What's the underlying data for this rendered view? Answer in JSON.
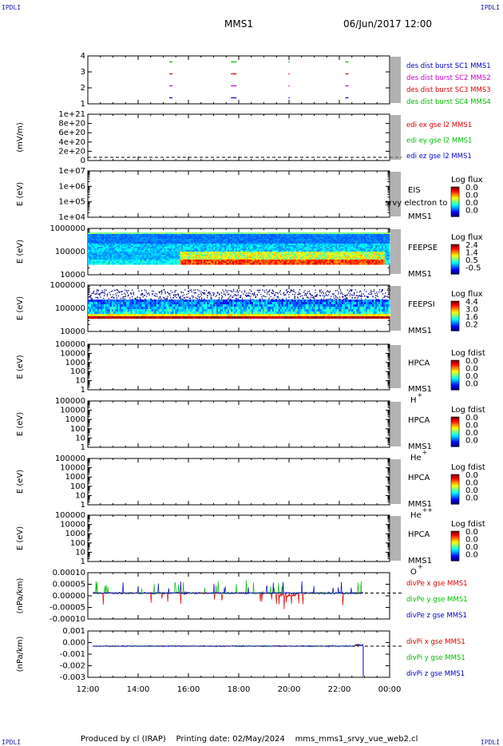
{
  "corner_mark": "IPDLI",
  "header": {
    "title": "MMS1",
    "date": "06/Jun/2017 12:00"
  },
  "footer": {
    "produced_by": "Produced by cl (IRAP)",
    "printing_date": "Printing date: 02/May/2024",
    "filename": "mms_mms1_srvy_vue_web2.cl"
  },
  "time_axis": {
    "labels": [
      "12:00",
      "14:00",
      "16:00",
      "18:00",
      "20:00",
      "22:00",
      "00:00"
    ],
    "hours": [
      12,
      14,
      16,
      18,
      20,
      22,
      24
    ],
    "data_end_hour": 22.95
  },
  "chart_data": [
    {
      "type": "scatter",
      "panel": "des_dist_burst",
      "ylim": [
        0.5,
        4.5
      ],
      "yticks": [
        "1",
        "2",
        "3",
        "4"
      ],
      "grid": false,
      "series": [
        {
          "name": "des dist burst SC1 MMS1",
          "color": "#0000cc",
          "y": 1,
          "x_hours": [
            15.3,
            17.8,
            20.0,
            22.3
          ]
        },
        {
          "name": "des dist burst SC2 MMS2",
          "color": "#cc00cc",
          "y": 2,
          "x_hours": [
            15.3,
            17.8,
            20.0,
            22.3
          ]
        },
        {
          "name": "des dist burst SC3 MMS3",
          "color": "#dd0000",
          "y": 3,
          "x_hours": [
            15.3,
            17.8,
            20.0,
            22.3
          ]
        },
        {
          "name": "des dist burst SC4 MMS4",
          "color": "#00bb00",
          "y": 4,
          "x_hours": [
            15.3,
            17.8,
            20.0,
            22.3
          ]
        }
      ]
    },
    {
      "type": "line",
      "panel": "edi_e_gse",
      "ylabel": "(mV/m)",
      "yticks": [
        "0",
        "2e+20",
        "4e+20",
        "6e+20",
        "8e+20",
        "1e+21"
      ],
      "ylim": [
        0,
        1e+21
      ],
      "series": [
        {
          "name": "edi ex gse l2 MMS1",
          "color": "#dd0000"
        },
        {
          "name": "edi ey gse l2 MMS1",
          "color": "#00bb00"
        },
        {
          "name": "edi ez gse l2 MMS1",
          "color": "#0000cc"
        }
      ],
      "zero_line": true
    },
    {
      "type": "heatmap",
      "panel": "eis",
      "ylabel": "E (eV)",
      "yticks": [
        "1e+04",
        "1e+05",
        "1e+06",
        "1e+07"
      ],
      "instrument": "EIS",
      "spacecraft": "MMS1",
      "overlay_text": "srvy electron to",
      "colorbar_title": "Log flux",
      "colorbar_ticks": [
        "0.0",
        "0.0",
        "0.0",
        "0.0"
      ],
      "empty": true
    },
    {
      "type": "heatmap",
      "panel": "feeps_electron",
      "ylabel": "E (eV)",
      "yticks": [
        "10000",
        "100000",
        "1000000"
      ],
      "instrument": "FEEPSE",
      "spacecraft": "MMS1",
      "colorbar_title": "Log flux",
      "colorbar_ticks": [
        "2.4",
        "1.4",
        "0.5",
        "-0.5"
      ],
      "empty": false
    },
    {
      "type": "heatmap",
      "panel": "feeps_ion",
      "ylabel": "E (eV)",
      "yticks": [
        "10000",
        "100000",
        "1000000"
      ],
      "instrument": "FEEPSI",
      "spacecraft": "MMS1",
      "colorbar_title": "Log flux",
      "colorbar_ticks": [
        "4.4",
        "3.0",
        "1.6",
        "0.2"
      ],
      "empty": false
    },
    {
      "type": "heatmap",
      "panel": "hpca_h",
      "ylabel": "E (eV)",
      "yticks": [
        "1",
        "10",
        "100",
        "1000",
        "10000",
        "100000"
      ],
      "instrument": "HPCA",
      "spacecraft": "MMS1",
      "species": "H",
      "charge": "+",
      "colorbar_title": "Log fdist",
      "colorbar_ticks": [
        "0.0",
        "0.0",
        "0.0",
        "0.0"
      ],
      "empty": true
    },
    {
      "type": "heatmap",
      "panel": "hpca_he",
      "ylabel": "E (eV)",
      "yticks": [
        "1",
        "10",
        "100",
        "1000",
        "10000",
        "100000"
      ],
      "instrument": "HPCA",
      "spacecraft": "MMS1",
      "species": "He",
      "charge": "+",
      "colorbar_title": "Log fdist",
      "colorbar_ticks": [
        "0.0",
        "0.0",
        "0.0",
        "0.0"
      ],
      "empty": true
    },
    {
      "type": "heatmap",
      "panel": "hpca_hepp",
      "ylabel": "E (eV)",
      "yticks": [
        "1",
        "10",
        "100",
        "1000",
        "10000",
        "100000"
      ],
      "instrument": "HPCA",
      "spacecraft": "MMS1",
      "species": "He",
      "charge": "++",
      "colorbar_title": "Log fdist",
      "colorbar_ticks": [
        "0.0",
        "0.0",
        "0.0",
        "0.0"
      ],
      "empty": true
    },
    {
      "type": "heatmap",
      "panel": "hpca_o",
      "ylabel": "E (eV)",
      "yticks": [
        "1",
        "10",
        "100",
        "1000",
        "10000",
        "100000"
      ],
      "instrument": "HPCA",
      "spacecraft": "MMS1",
      "species": "O",
      "charge": "+",
      "colorbar_title": "Log fdist",
      "colorbar_ticks": [
        "0.0",
        "0.0",
        "0.0",
        "0.0"
      ],
      "empty": true
    },
    {
      "type": "line",
      "panel": "divpe",
      "ylabel": "(nPa/km)",
      "yticks": [
        "-0.00010",
        "-0.00005",
        "0.00000",
        "0.00005",
        "0.00010"
      ],
      "ylim": [
        -0.00014,
        0.00011
      ],
      "series": [
        {
          "name": "divPe x gse MMS1",
          "color": "#dd0000"
        },
        {
          "name": "divPe y gse MMS1",
          "color": "#00bb00"
        },
        {
          "name": "divPe z gse MMS1",
          "color": "#0000cc"
        }
      ],
      "zero_line": true
    },
    {
      "type": "line",
      "panel": "divpi",
      "ylabel": "(nPa/km)",
      "yticks": [
        "-0.003",
        "-0.002",
        "-0.001",
        "0.000",
        "0.001"
      ],
      "ylim": [
        -0.0033,
        0.0016
      ],
      "series": [
        {
          "name": "divPi x gse MMS1",
          "color": "#dd0000"
        },
        {
          "name": "divPi y gse MMS1",
          "color": "#00bb00"
        },
        {
          "name": "divPi z gse MMS1",
          "color": "#0000cc"
        }
      ],
      "zero_line": true
    }
  ]
}
